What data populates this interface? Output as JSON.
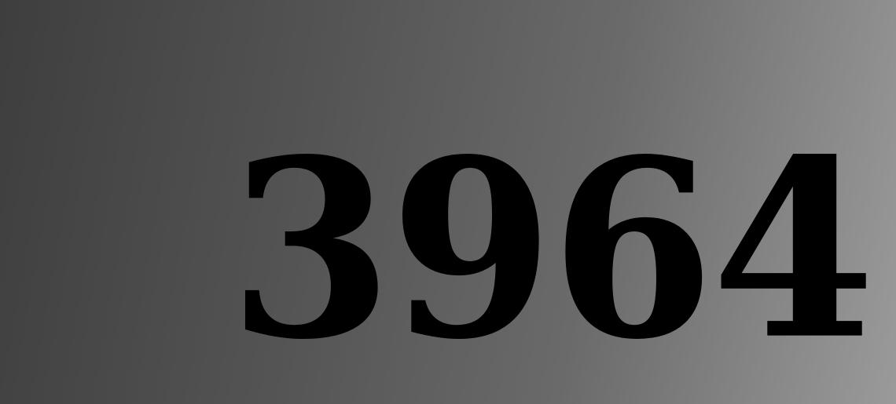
{
  "number_text": "3964",
  "colors": {
    "background_start": "#3e3e3e",
    "background_end": "#9a9a9a",
    "text": "#000000"
  }
}
